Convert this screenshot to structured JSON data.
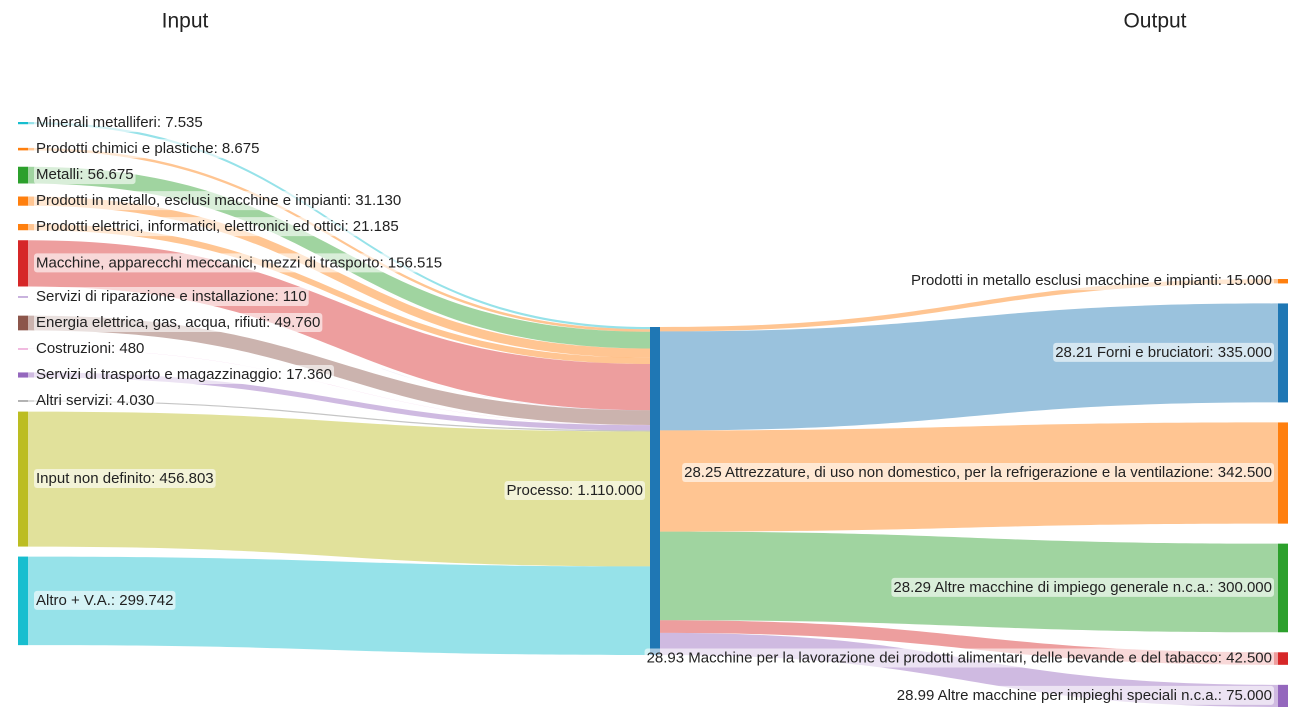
{
  "chart_data": {
    "type": "sankey",
    "columns": [
      "Input",
      "Output"
    ],
    "nodes": [
      {
        "label": "Minerali metalliferi: 7.535",
        "color": "#17becf"
      },
      {
        "label": "Prodotti chimici e plastiche: 8.675",
        "color": "#ff7f0e"
      },
      {
        "label": "Metalli: 56.675",
        "color": "#2ca02c"
      },
      {
        "label": "Prodotti in metallo, esclusi macchine e impianti: 31.130",
        "color": "#ff7f0e"
      },
      {
        "label": "Prodotti elettrici, informatici, elettronici ed ottici: 21.185",
        "color": "#ff7f0e"
      },
      {
        "label": "Macchine, apparecchi meccanici, mezzi di trasporto: 156.515",
        "color": "#d62728"
      },
      {
        "label": "Servizi di riparazione e installazione: 110",
        "color": "#9467bd"
      },
      {
        "label": "Energia elettrica, gas, acqua, rifiuti: 49.760",
        "color": "#8c564b"
      },
      {
        "label": "Costruzioni: 480",
        "color": "#e377c2"
      },
      {
        "label": "Servizi di trasporto e magazzinaggio: 17.360",
        "color": "#9467bd"
      },
      {
        "label": "Altri servizi: 4.030",
        "color": "#7f7f7f"
      },
      {
        "label": "Input non definito: 456.803",
        "color": "#bcbd22"
      },
      {
        "label": "Altro + V.A.: 299.742",
        "color": "#17becf"
      },
      {
        "label": "Processo: 1.110.000",
        "color": "#1f77b4"
      },
      {
        "label": "Prodotti in metallo esclusi macchine e impianti: 15.000",
        "color": "#ff7f0e"
      },
      {
        "label": "28.21 Forni e bruciatori: 335.000",
        "color": "#1f77b4"
      },
      {
        "label": "28.25 Attrezzature, di uso non domestico, per la refrigerazione e la ventilazione: 342.500",
        "color": "#ff7f0e"
      },
      {
        "label": "28.29 Altre macchine di impiego generale n.c.a.: 300.000",
        "color": "#2ca02c"
      },
      {
        "label": "28.93 Macchine per la lavorazione dei prodotti alimentari, delle bevande e del tabacco: 42.500",
        "color": "#d62728"
      },
      {
        "label": "28.99 Altre macchine per impieghi speciali n.c.a.: 75.000",
        "color": "#9467bd"
      }
    ],
    "links": [
      {
        "source": 0,
        "target": 13,
        "value": 7535
      },
      {
        "source": 1,
        "target": 13,
        "value": 8675
      },
      {
        "source": 2,
        "target": 13,
        "value": 56675
      },
      {
        "source": 3,
        "target": 13,
        "value": 31130
      },
      {
        "source": 4,
        "target": 13,
        "value": 21185
      },
      {
        "source": 5,
        "target": 13,
        "value": 156515
      },
      {
        "source": 6,
        "target": 13,
        "value": 110
      },
      {
        "source": 7,
        "target": 13,
        "value": 49760
      },
      {
        "source": 8,
        "target": 13,
        "value": 480
      },
      {
        "source": 9,
        "target": 13,
        "value": 17360
      },
      {
        "source": 10,
        "target": 13,
        "value": 4030
      },
      {
        "source": 11,
        "target": 13,
        "value": 456803
      },
      {
        "source": 12,
        "target": 13,
        "value": 299742
      },
      {
        "source": 13,
        "target": 14,
        "value": 15000
      },
      {
        "source": 13,
        "target": 15,
        "value": 335000
      },
      {
        "source": 13,
        "target": 16,
        "value": 342500
      },
      {
        "source": 13,
        "target": 17,
        "value": 300000
      },
      {
        "source": 13,
        "target": 18,
        "value": 42500
      },
      {
        "source": 13,
        "target": 19,
        "value": 75000
      }
    ]
  }
}
